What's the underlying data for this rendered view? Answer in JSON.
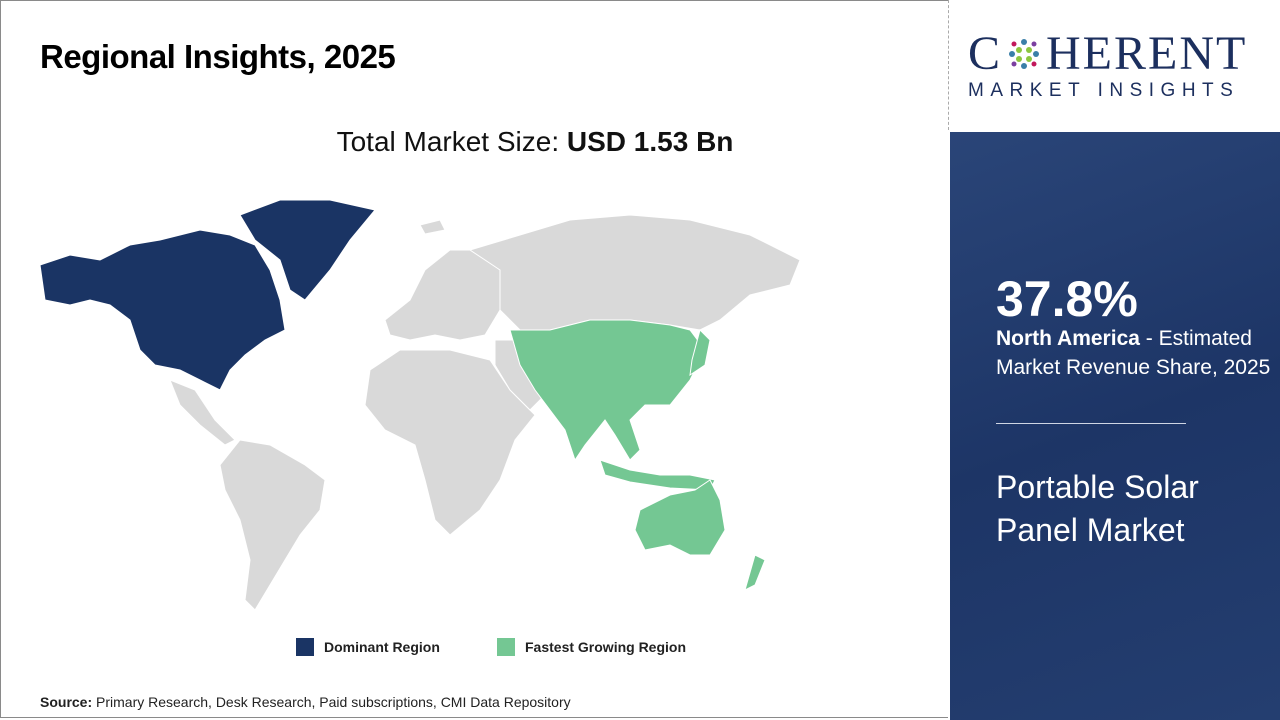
{
  "header": {
    "title": "Regional Insights, 2025"
  },
  "total": {
    "label": "Total Market Size: ",
    "value": "USD 1.53 Bn"
  },
  "legend": [
    {
      "label": "Dominant Region",
      "color": "#1a3464"
    },
    {
      "label": "Fastest Growing Region",
      "color": "#74c793"
    }
  ],
  "map_colors": {
    "other": "#d9d9d9",
    "dominant": "#1a3464",
    "fastest": "#74c793"
  },
  "source": {
    "label": "Source:",
    "text": " Primary Research, Desk Research, Paid subscriptions, CMI Data Repository"
  },
  "logo": {
    "big_left": "C",
    "big_right": "HERENT",
    "small": "MARKET INSIGHTS"
  },
  "panel": {
    "share": "37.8%",
    "region": "North America",
    "description": " - Estimated Market Revenue Share, 2025",
    "market": "Portable Solar Panel Market"
  }
}
